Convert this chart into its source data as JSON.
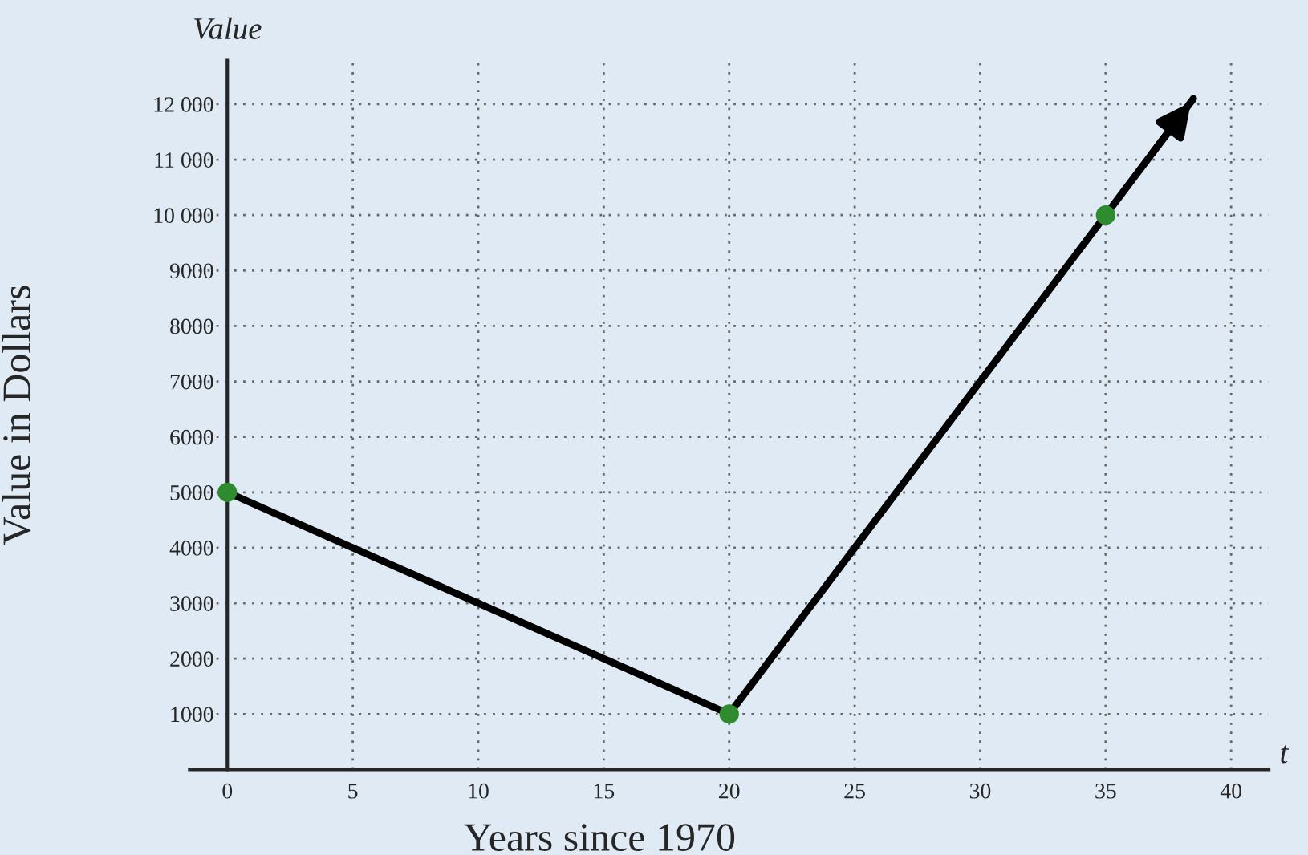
{
  "chart_data": {
    "type": "line",
    "xlabel": "Years since 1970",
    "ylabel": "Value in Dollars",
    "annotations": [
      "Value",
      "t"
    ],
    "series": [
      {
        "color": "#000000",
        "x": [
          0,
          20,
          35,
          38.5
        ],
        "values": [
          5000,
          1000,
          10000,
          12100
        ],
        "marker": "none"
      },
      {
        "type": "scatter",
        "color": "#2e8b2e",
        "x": [
          0,
          20,
          35
        ],
        "values": [
          5000,
          1000,
          10000
        ],
        "marker": "circle"
      }
    ],
    "xlim": [
      -1.5,
      41.5
    ],
    "ylim": [
      0,
      12800
    ],
    "xticks": [
      0,
      5,
      10,
      15,
      20,
      25,
      30,
      35,
      40
    ],
    "yticks": [
      1000,
      2000,
      3000,
      4000,
      5000,
      6000,
      7000,
      8000,
      9000,
      {
        "value": 10000,
        "label": "10 000"
      },
      {
        "value": 11000,
        "label": "11 000"
      },
      {
        "value": 12000,
        "label": "12 000"
      }
    ],
    "grid": true
  }
}
